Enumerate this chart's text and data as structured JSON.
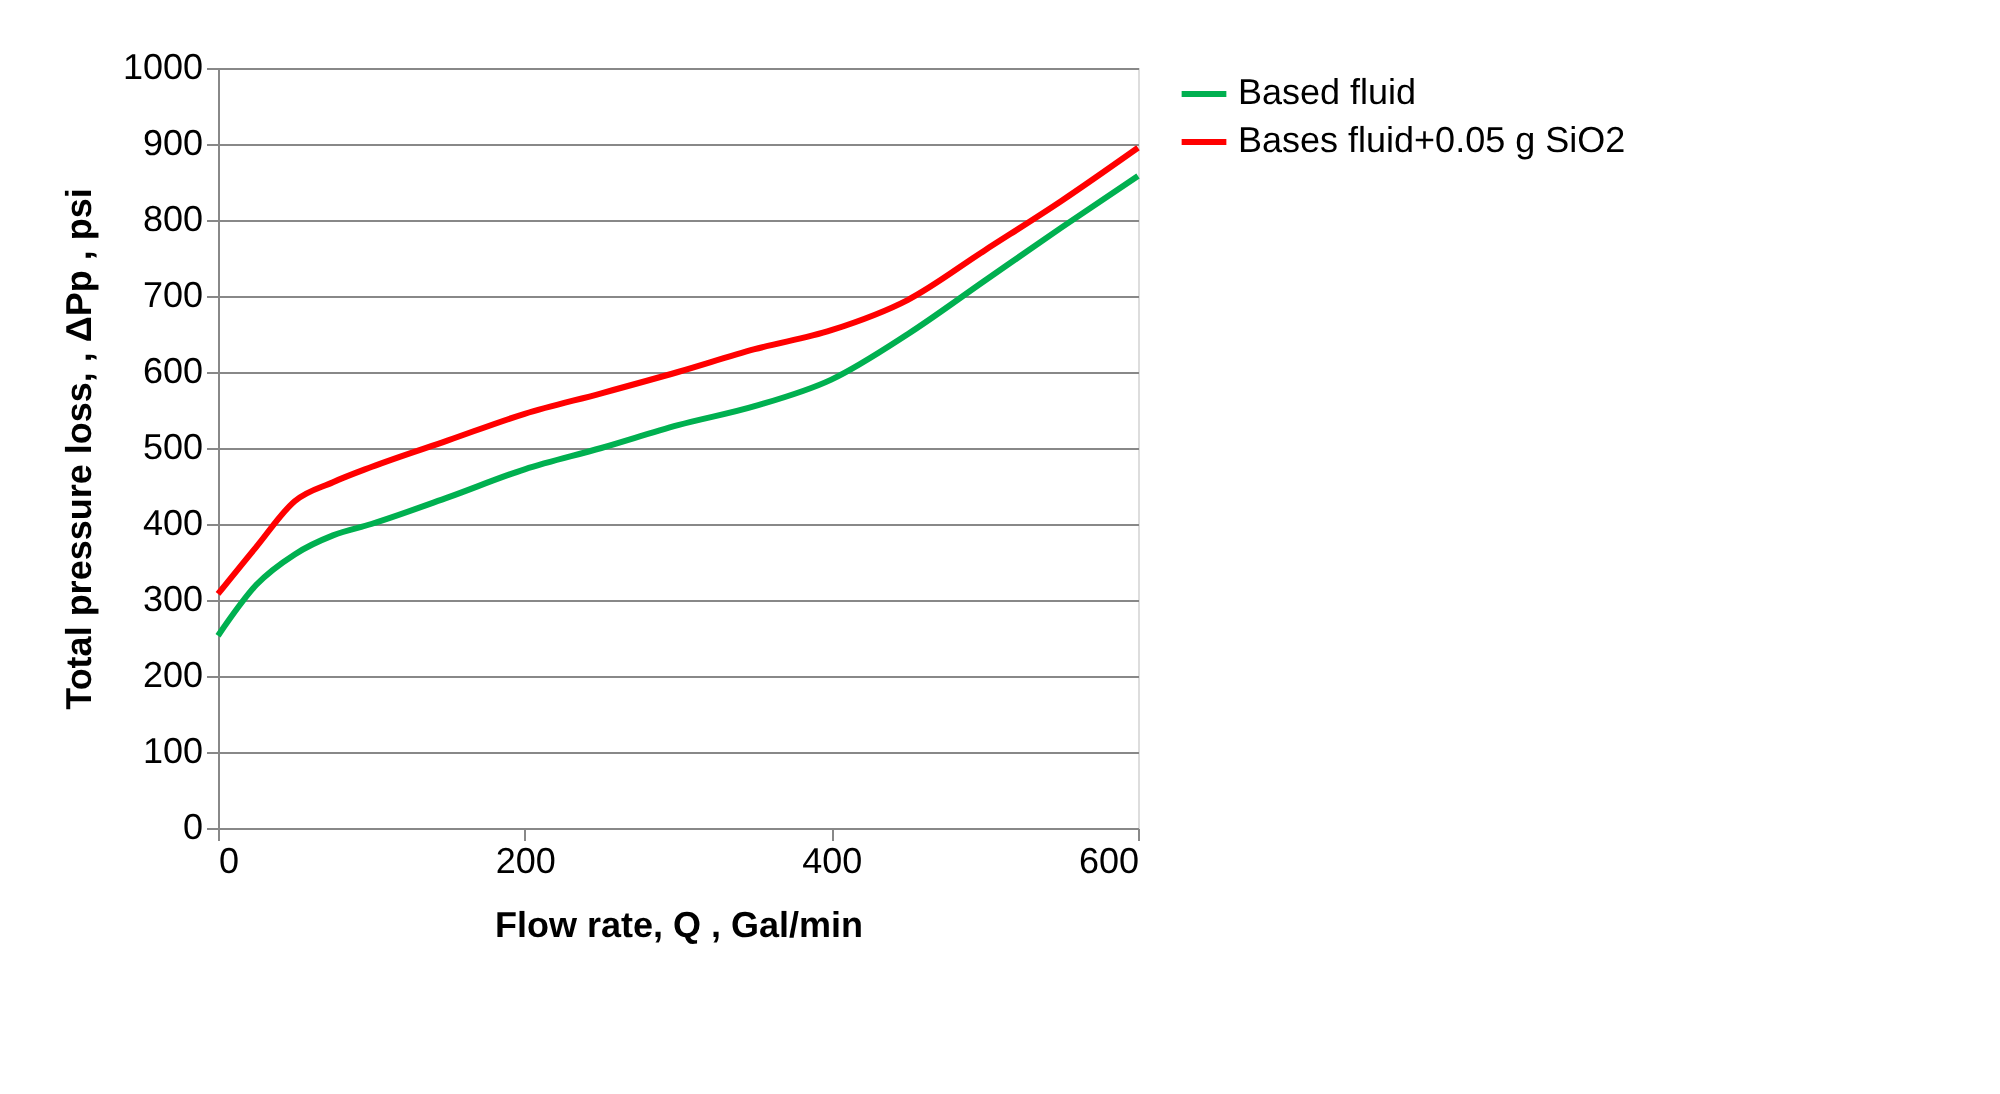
{
  "chart_data": {
    "type": "line",
    "xlabel": "Flow rate, Q , Gal/min",
    "ylabel": "Total pressure loss, , ΔPp , psi",
    "x": [
      0,
      25,
      50,
      75,
      100,
      150,
      200,
      250,
      300,
      350,
      400,
      450,
      500,
      550,
      600
    ],
    "series": [
      {
        "name": "Based fluid",
        "color": "#00b050",
        "values": [
          253,
          320,
          360,
          385,
          400,
          435,
          472,
          500,
          530,
          555,
          590,
          650,
          720,
          790,
          858
        ]
      },
      {
        "name": "Bases fluid+0.05 g SiO2",
        "color": "#ff0000",
        "values": [
          308,
          370,
          430,
          455,
          475,
          510,
          545,
          572,
          600,
          630,
          655,
          695,
          760,
          825,
          895
        ]
      }
    ],
    "xlim": [
      0,
      600
    ],
    "xticks": [
      0,
      200,
      400,
      600
    ],
    "ylim": [
      0,
      1000
    ],
    "yticks": [
      0,
      100,
      200,
      300,
      400,
      500,
      600,
      700,
      800,
      900,
      1000
    ],
    "grid": "y",
    "legend": "right",
    "marker": "none",
    "line_style": "solid"
  }
}
